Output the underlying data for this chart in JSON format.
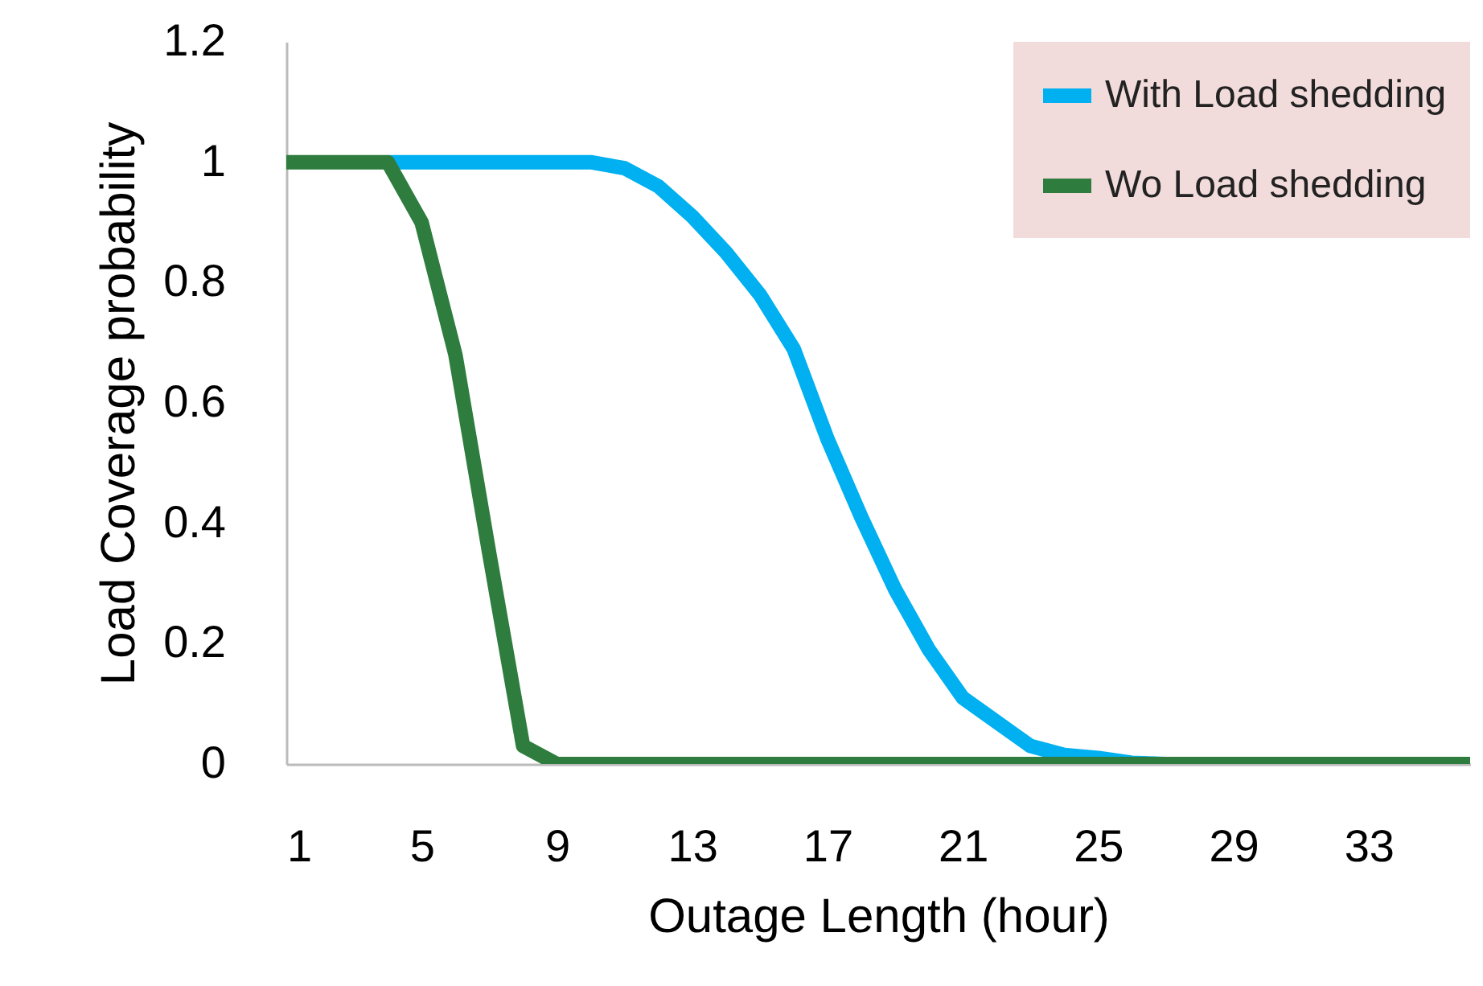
{
  "chart_data": {
    "type": "line",
    "xlabel": "Outage Length (hour)",
    "ylabel": "Load Coverage probability",
    "x": [
      1,
      2,
      3,
      4,
      5,
      6,
      7,
      8,
      9,
      10,
      11,
      12,
      13,
      14,
      15,
      16,
      17,
      18,
      19,
      20,
      21,
      22,
      23,
      24,
      25,
      26,
      27,
      28,
      29,
      30,
      31,
      32,
      33,
      34,
      35,
      36
    ],
    "series": [
      {
        "name": "With Load shedding",
        "color": "#00b0f0",
        "values": [
          null,
          null,
          null,
          1,
          1,
          1,
          1,
          1,
          1,
          1,
          0.99,
          0.96,
          0.91,
          0.85,
          0.78,
          0.69,
          0.54,
          0.41,
          0.29,
          0.19,
          0.11,
          0.07,
          0.03,
          0.015,
          0.01,
          0.002,
          0,
          0,
          null,
          null,
          null,
          null,
          null,
          null,
          null,
          null
        ]
      },
      {
        "name": "Wo Load shedding",
        "color": "#2e7d3e",
        "values": [
          1,
          1,
          1,
          1,
          0.9,
          0.68,
          0.35,
          0.03,
          0,
          0,
          0,
          0,
          0,
          0,
          0,
          0,
          0,
          0,
          0,
          0,
          0,
          0,
          0,
          0,
          0,
          0,
          0,
          0,
          0,
          0,
          0,
          0,
          0,
          0,
          0,
          0
        ]
      }
    ],
    "xlim": [
      1,
      36
    ],
    "xticks": [
      1,
      5,
      9,
      13,
      17,
      21,
      25,
      29,
      33
    ],
    "ylim": [
      0,
      1.2
    ],
    "yticks": [
      0,
      0.2,
      0.4,
      0.6,
      0.8,
      1,
      1.2
    ],
    "grid": false,
    "legend": "top right",
    "marker": "none",
    "line_style": "solid"
  }
}
